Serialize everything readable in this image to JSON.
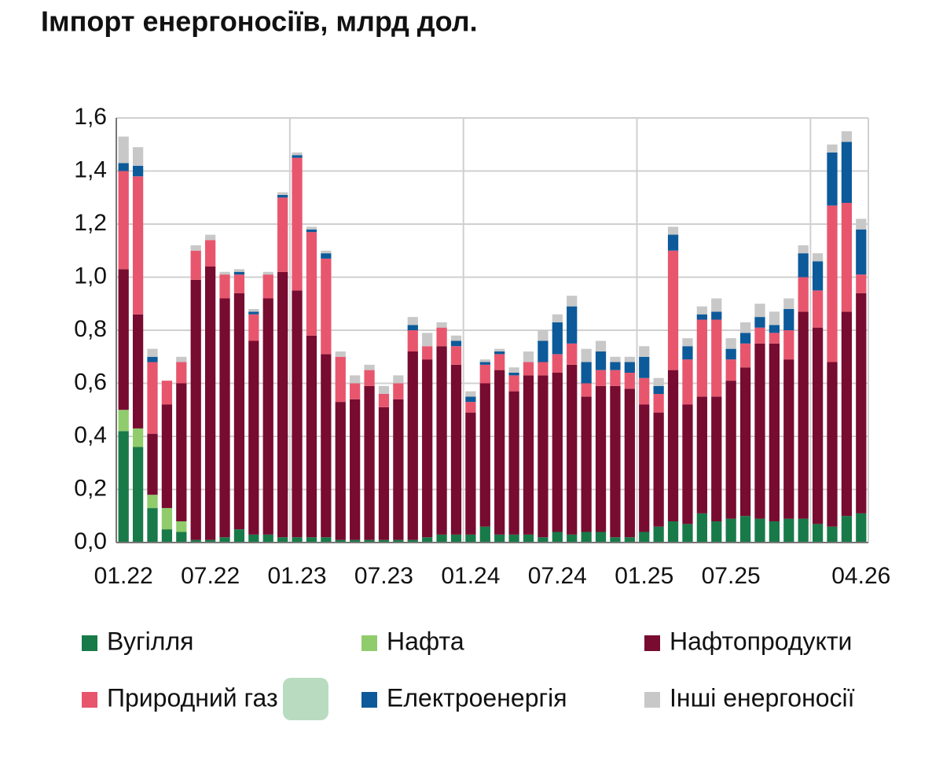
{
  "chart_data": {
    "type": "stacked_bar",
    "title": "Імпорт енергоносіїв, млрд дол.",
    "categories": [
      "01.22",
      null,
      null,
      null,
      null,
      null,
      "07.22",
      null,
      null,
      null,
      null,
      null,
      "01.23",
      null,
      null,
      null,
      null,
      null,
      "07.23",
      null,
      null,
      null,
      null,
      null,
      "01.24",
      null,
      null,
      null,
      null,
      null,
      "07.24",
      null,
      null,
      null,
      null,
      null,
      "01.25",
      null,
      null,
      null,
      null,
      null,
      "07.25",
      null,
      null,
      null,
      null,
      null,
      null,
      null,
      null,
      "04.26"
    ],
    "series": [
      {
        "name": "Вугілля",
        "color": "#187a48",
        "values": [
          0.42,
          0.36,
          0.13,
          0.05,
          0.04,
          0.01,
          0.01,
          0.02,
          0.05,
          0.03,
          0.03,
          0.02,
          0.02,
          0.02,
          0.02,
          0.01,
          0.01,
          0.01,
          0.01,
          0.01,
          0.01,
          0.02,
          0.03,
          0.03,
          0.03,
          0.06,
          0.03,
          0.03,
          0.03,
          0.02,
          0.04,
          0.03,
          0.04,
          0.04,
          0.02,
          0.02,
          0.04,
          0.06,
          0.08,
          0.07,
          0.11,
          0.08,
          0.09,
          0.1,
          0.09,
          0.08,
          0.09,
          0.09,
          0.07,
          0.06,
          0.1,
          0.11
        ]
      },
      {
        "name": "Нафта",
        "color": "#90cc6c",
        "values": [
          0.08,
          0.07,
          0.05,
          0.08,
          0.04,
          0,
          0,
          0,
          0,
          0,
          0,
          0,
          0,
          0,
          0,
          0,
          0,
          0,
          0,
          0,
          0,
          0,
          0,
          0,
          0,
          0,
          0,
          0,
          0,
          0,
          0,
          0,
          0,
          0,
          0,
          0,
          0,
          0,
          0,
          0,
          0,
          0,
          0,
          0,
          0,
          0,
          0,
          0,
          0,
          0,
          0,
          0
        ]
      },
      {
        "name": "Нафтопродукти",
        "color": "#780b30",
        "values": [
          0.53,
          0.43,
          0.23,
          0.39,
          0.52,
          0.98,
          1.03,
          0.9,
          0.89,
          0.73,
          0.89,
          1.0,
          0.93,
          0.76,
          0.69,
          0.52,
          0.53,
          0.58,
          0.5,
          0.53,
          0.71,
          0.67,
          0.71,
          0.64,
          0.46,
          0.54,
          0.62,
          0.54,
          0.6,
          0.61,
          0.6,
          0.64,
          0.51,
          0.55,
          0.57,
          0.56,
          0.48,
          0.43,
          0.57,
          0.45,
          0.44,
          0.47,
          0.52,
          0.56,
          0.66,
          0.67,
          0.6,
          0.78,
          0.74,
          0.62,
          0.77,
          0.83
        ]
      },
      {
        "name": "Природний газ",
        "color": "#e8566e",
        "values": [
          0.37,
          0.52,
          0.27,
          0.09,
          0.08,
          0.11,
          0.1,
          0.09,
          0.07,
          0.1,
          0.09,
          0.28,
          0.5,
          0.39,
          0.36,
          0.17,
          0.06,
          0.06,
          0.05,
          0.06,
          0.08,
          0.05,
          0.07,
          0.07,
          0.04,
          0.07,
          0.06,
          0.06,
          0.05,
          0.05,
          0.07,
          0.08,
          0.05,
          0.06,
          0.06,
          0.06,
          0.1,
          0.07,
          0.45,
          0.17,
          0.29,
          0.29,
          0.08,
          0.09,
          0.06,
          0.04,
          0.11,
          0.13,
          0.14,
          0.59,
          0.41,
          0.07
        ]
      },
      {
        "name": "Електроенергія",
        "color": "#0c5a9a",
        "values": [
          0.03,
          0.04,
          0.02,
          0,
          0,
          0,
          0,
          0,
          0.01,
          0.01,
          0,
          0.01,
          0.01,
          0.01,
          0.02,
          0,
          0,
          0,
          0,
          0,
          0.02,
          0,
          0,
          0.02,
          0.02,
          0.01,
          0.01,
          0.01,
          0,
          0.08,
          0.12,
          0.14,
          0.08,
          0.07,
          0.03,
          0.04,
          0.08,
          0.03,
          0.06,
          0.05,
          0.02,
          0.03,
          0.04,
          0.04,
          0.04,
          0.03,
          0.08,
          0.09,
          0.11,
          0.2,
          0.23,
          0.17
        ]
      },
      {
        "name": "Інші енергоносії",
        "color": "#c8c8c8",
        "values": [
          0.1,
          0.07,
          0.03,
          0,
          0.02,
          0.02,
          0.02,
          0.01,
          0.01,
          0.01,
          0.01,
          0.01,
          0.01,
          0.01,
          0.01,
          0.02,
          0.03,
          0.02,
          0.03,
          0.03,
          0.03,
          0.05,
          0.02,
          0.02,
          0.02,
          0.01,
          0.01,
          0.02,
          0.04,
          0.04,
          0.03,
          0.04,
          0.05,
          0.04,
          0.02,
          0.02,
          0.04,
          0.03,
          0.03,
          0.03,
          0.03,
          0.05,
          0.04,
          0.04,
          0.05,
          0.05,
          0.04,
          0.03,
          0.03,
          0.03,
          0.04,
          0.04
        ]
      }
    ],
    "ylim": [
      0,
      1.6
    ],
    "yticks": [
      {
        "value": 0,
        "label": "0,0"
      },
      {
        "value": 0.2,
        "label": "0,2"
      },
      {
        "value": 0.4,
        "label": "0,4"
      },
      {
        "value": 0.6,
        "label": "0,6"
      },
      {
        "value": 0.8,
        "label": "0,8"
      },
      {
        "value": 1.0,
        "label": "1,0"
      },
      {
        "value": 1.2,
        "label": "1,2"
      },
      {
        "value": 1.4,
        "label": "1,4"
      },
      {
        "value": 1.6,
        "label": "1,6"
      }
    ],
    "grid": true
  }
}
